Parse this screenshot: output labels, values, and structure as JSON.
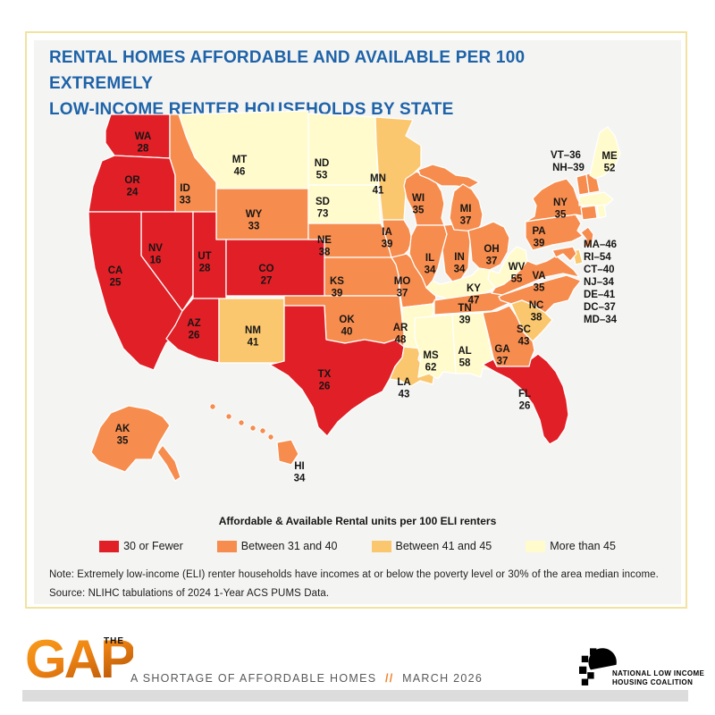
{
  "title": {
    "line1": "RENTAL HOMES AFFORDABLE AND AVAILABLE PER 100 EXTREMELY",
    "line2": "LOW-INCOME RENTER HOUSEHOLDS BY STATE"
  },
  "legend": {
    "title": "Affordable & Available Rental units per 100 ELI renters",
    "items": [
      {
        "label": "30 or Fewer",
        "color": "#e01f26"
      },
      {
        "label": "Between 31 and 40",
        "color": "#f68c4d"
      },
      {
        "label": "Between 41 and 45",
        "color": "#fac76e"
      },
      {
        "label": "More than 45",
        "color": "#fffbcd"
      }
    ]
  },
  "notes": {
    "note": "Note: Extremely low-income (ELI) renter households have incomes at or below the poverty level or 30% of the area median income.",
    "source": "Source: NLIHC tabulations of 2024 1-Year ACS PUMS Data."
  },
  "footer": {
    "brand_small": "THE",
    "brand": "GAP",
    "tagline": {
      "prefix": "A SHORTAGE OF AFFORDABLE HOMES",
      "separator": "//",
      "suffix": "MARCH 2026"
    },
    "org": {
      "line1": "NATIONAL LOW INCOME",
      "line2": "HOUSING COALITION"
    }
  },
  "chart_data": {
    "type": "choropleth",
    "title": "Rental homes affordable and available per 100 extremely low-income renter households by state",
    "unit_label": "Affordable & Available Rental units per 100 ELI renters",
    "legend_position": "bottom",
    "bins": [
      {
        "name": "30 or Fewer",
        "color": "#e01f26"
      },
      {
        "name": "Between 31 and 40",
        "color": "#f68c4d"
      },
      {
        "name": "Between 41 and 45",
        "color": "#fac76e"
      },
      {
        "name": "More than 45",
        "color": "#fffbcd"
      }
    ],
    "states": [
      {
        "abbr": "WA",
        "value": 28,
        "bin": 0
      },
      {
        "abbr": "OR",
        "value": 24,
        "bin": 0
      },
      {
        "abbr": "CA",
        "value": 25,
        "bin": 0
      },
      {
        "abbr": "NV",
        "value": 16,
        "bin": 0
      },
      {
        "abbr": "ID",
        "value": 33,
        "bin": 1
      },
      {
        "abbr": "MT",
        "value": 46,
        "bin": 3
      },
      {
        "abbr": "WY",
        "value": 33,
        "bin": 1
      },
      {
        "abbr": "UT",
        "value": 28,
        "bin": 0
      },
      {
        "abbr": "CO",
        "value": 27,
        "bin": 0
      },
      {
        "abbr": "AZ",
        "value": 26,
        "bin": 0
      },
      {
        "abbr": "NM",
        "value": 41,
        "bin": 2
      },
      {
        "abbr": "ND",
        "value": 53,
        "bin": 3
      },
      {
        "abbr": "SD",
        "value": 73,
        "bin": 3
      },
      {
        "abbr": "NE",
        "value": 38,
        "bin": 1
      },
      {
        "abbr": "KS",
        "value": 39,
        "bin": 1
      },
      {
        "abbr": "OK",
        "value": 40,
        "bin": 1
      },
      {
        "abbr": "TX",
        "value": 26,
        "bin": 0
      },
      {
        "abbr": "MN",
        "value": 41,
        "bin": 2
      },
      {
        "abbr": "IA",
        "value": 39,
        "bin": 1
      },
      {
        "abbr": "MO",
        "value": 37,
        "bin": 1
      },
      {
        "abbr": "AR",
        "value": 48,
        "bin": 3
      },
      {
        "abbr": "LA",
        "value": 43,
        "bin": 2
      },
      {
        "abbr": "WI",
        "value": 35,
        "bin": 1
      },
      {
        "abbr": "IL",
        "value": 34,
        "bin": 1
      },
      {
        "abbr": "IN",
        "value": 34,
        "bin": 1
      },
      {
        "abbr": "MI",
        "value": 37,
        "bin": 1
      },
      {
        "abbr": "OH",
        "value": 37,
        "bin": 1
      },
      {
        "abbr": "KY",
        "value": 47,
        "bin": 3
      },
      {
        "abbr": "TN",
        "value": 39,
        "bin": 1
      },
      {
        "abbr": "MS",
        "value": 62,
        "bin": 3
      },
      {
        "abbr": "AL",
        "value": 58,
        "bin": 3
      },
      {
        "abbr": "GA",
        "value": 37,
        "bin": 1
      },
      {
        "abbr": "SC",
        "value": 43,
        "bin": 2
      },
      {
        "abbr": "NC",
        "value": 38,
        "bin": 1
      },
      {
        "abbr": "VA",
        "value": 35,
        "bin": 1
      },
      {
        "abbr": "WV",
        "value": 55,
        "bin": 3
      },
      {
        "abbr": "PA",
        "value": 39,
        "bin": 1
      },
      {
        "abbr": "NY",
        "value": 35,
        "bin": 1
      },
      {
        "abbr": "VT",
        "value": 36,
        "bin": 1
      },
      {
        "abbr": "NH",
        "value": 39,
        "bin": 1
      },
      {
        "abbr": "ME",
        "value": 52,
        "bin": 3
      },
      {
        "abbr": "MA",
        "value": 46,
        "bin": 3
      },
      {
        "abbr": "RI",
        "value": 54,
        "bin": 3
      },
      {
        "abbr": "CT",
        "value": 40,
        "bin": 1
      },
      {
        "abbr": "NJ",
        "value": 34,
        "bin": 1
      },
      {
        "abbr": "DE",
        "value": 41,
        "bin": 2
      },
      {
        "abbr": "DC",
        "value": 37,
        "bin": 1
      },
      {
        "abbr": "MD",
        "value": 34,
        "bin": 1
      },
      {
        "abbr": "FL",
        "value": 26,
        "bin": 0
      },
      {
        "abbr": "AK",
        "value": 35,
        "bin": 1
      },
      {
        "abbr": "HI",
        "value": 34,
        "bin": 1
      }
    ]
  }
}
